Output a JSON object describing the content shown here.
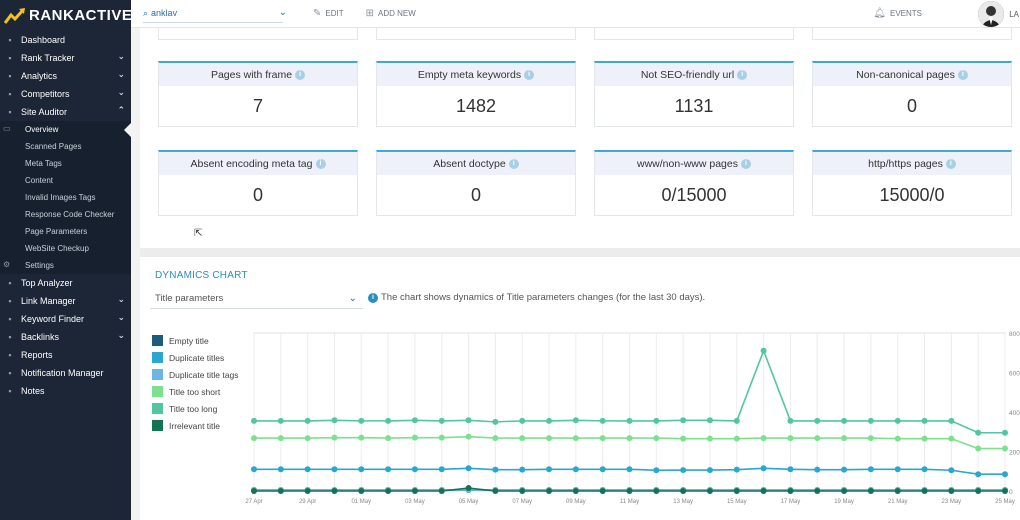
{
  "brand": {
    "name": "RANKACTIVE"
  },
  "topbar": {
    "project": "anklav",
    "edit_label": "EDIT",
    "add_new_label": "ADD NEW",
    "events_label": "EVENTS",
    "user_initials": "LA"
  },
  "sidebar": {
    "items": [
      {
        "label": "Dashboard",
        "icon": "dashboard-icon",
        "chevron": ""
      },
      {
        "label": "Rank Tracker",
        "icon": "rank-icon",
        "chevron": "⌄"
      },
      {
        "label": "Analytics",
        "icon": "analytics-icon",
        "chevron": "⌄"
      },
      {
        "label": "Competitors",
        "icon": "competitors-icon",
        "chevron": "⌄"
      },
      {
        "label": "Site Auditor",
        "icon": "auditor-icon",
        "chevron": "⌃"
      }
    ],
    "sub_items": [
      {
        "label": "Overview",
        "active": true
      },
      {
        "label": "Scanned Pages"
      },
      {
        "label": "Meta Tags"
      },
      {
        "label": "Content"
      },
      {
        "label": "Invalid Images Tags"
      },
      {
        "label": "Response Code Checker"
      },
      {
        "label": "Page Parameters"
      },
      {
        "label": "WebSite Checkup"
      },
      {
        "label": "Settings"
      }
    ],
    "items2": [
      {
        "label": "Top Analyzer",
        "icon": "top-analyzer-icon",
        "chevron": ""
      },
      {
        "label": "Link Manager",
        "icon": "link-icon",
        "chevron": "⌄"
      },
      {
        "label": "Keyword Finder",
        "icon": "keyword-icon",
        "chevron": "⌄"
      },
      {
        "label": "Backlinks",
        "icon": "backlinks-icon",
        "chevron": "⌄"
      },
      {
        "label": "Reports",
        "icon": "reports-icon",
        "chevron": ""
      },
      {
        "label": "Notification Manager",
        "icon": "bell-icon",
        "chevron": ""
      },
      {
        "label": "Notes",
        "icon": "notes-icon",
        "chevron": ""
      }
    ]
  },
  "cards": [
    {
      "label": "Pages with frame",
      "value": "7"
    },
    {
      "label": "Empty meta keywords",
      "value": "1482"
    },
    {
      "label": "Not SEO-friendly url",
      "value": "1131"
    },
    {
      "label": "Non-canonical pages",
      "value": "0"
    },
    {
      "label": "Absent encoding meta tag",
      "value": "0"
    },
    {
      "label": "Absent doctype",
      "value": "0"
    },
    {
      "label": "www/non-www pages",
      "value": "0/15000"
    },
    {
      "label": "http/https pages",
      "value": "15000/0"
    }
  ],
  "dynamics": {
    "title": "DYNAMICS CHART",
    "select_value": "Title parameters",
    "hint": "The chart shows dynamics of Title parameters changes (for the last 30 days)."
  },
  "colors": {
    "accent": "#3da9d6",
    "sidebar": "#1d2636"
  },
  "chart_data": {
    "type": "line",
    "ylim": [
      0,
      800
    ],
    "yticks": [
      "0",
      "200",
      "400",
      "600",
      "800"
    ],
    "x": [
      "27 Apr",
      "28 Apr",
      "29 Apr",
      "30 Apr",
      "01 May",
      "02 May",
      "03 May",
      "04 May",
      "05 May",
      "06 May",
      "07 May",
      "08 May",
      "09 May",
      "10 May",
      "11 May",
      "12 May",
      "13 May",
      "14 May",
      "15 May",
      "16 May",
      "17 May",
      "18 May",
      "19 May",
      "20 May",
      "21 May",
      "22 May",
      "23 May",
      "24 May",
      "25 May"
    ],
    "xtick_labels": [
      "27 Apr",
      "29 Apr",
      "01 May",
      "03 May",
      "05 May",
      "07 May",
      "09 May",
      "11 May",
      "13 May",
      "15 May",
      "17 May",
      "19 May",
      "21 May",
      "23 May",
      "25 May"
    ],
    "series": [
      {
        "name": "Empty title",
        "color": "#1e5b80",
        "values": [
          5,
          5,
          5,
          5,
          5,
          5,
          5,
          5,
          5,
          5,
          5,
          5,
          5,
          5,
          5,
          5,
          5,
          5,
          5,
          5,
          5,
          5,
          5,
          5,
          5,
          5,
          5,
          5,
          5
        ]
      },
      {
        "name": "Duplicate titles",
        "color": "#2aa6cf",
        "values": [
          110,
          110,
          110,
          110,
          110,
          110,
          110,
          110,
          115,
          108,
          108,
          110,
          110,
          110,
          110,
          105,
          106,
          106,
          108,
          115,
          110,
          108,
          108,
          110,
          110,
          110,
          105,
          85,
          85
        ]
      },
      {
        "name": "Duplicate title tags",
        "color": "#6bb6e2",
        "values": [
          5,
          5,
          5,
          5,
          5,
          5,
          5,
          5,
          5,
          5,
          5,
          5,
          5,
          5,
          5,
          5,
          5,
          5,
          5,
          5,
          5,
          5,
          5,
          5,
          5,
          5,
          5,
          5,
          5
        ]
      },
      {
        "name": "Title too short",
        "color": "#7de08f",
        "values": [
          268,
          268,
          268,
          270,
          270,
          268,
          270,
          270,
          275,
          268,
          268,
          268,
          268,
          268,
          268,
          268,
          265,
          265,
          265,
          268,
          268,
          268,
          268,
          268,
          265,
          265,
          265,
          215,
          215
        ]
      },
      {
        "name": "Title too long",
        "color": "#52c6a0",
        "values": [
          355,
          355,
          355,
          358,
          355,
          355,
          358,
          355,
          358,
          350,
          355,
          355,
          358,
          355,
          355,
          355,
          358,
          358,
          355,
          710,
          355,
          355,
          355,
          355,
          355,
          355,
          355,
          295,
          295
        ]
      },
      {
        "name": "Irrelevant title",
        "color": "#147352",
        "values": [
          0,
          0,
          0,
          0,
          0,
          0,
          0,
          0,
          15,
          0,
          0,
          0,
          0,
          0,
          0,
          0,
          0,
          0,
          0,
          0,
          0,
          0,
          0,
          0,
          0,
          0,
          0,
          0,
          0
        ]
      }
    ]
  }
}
